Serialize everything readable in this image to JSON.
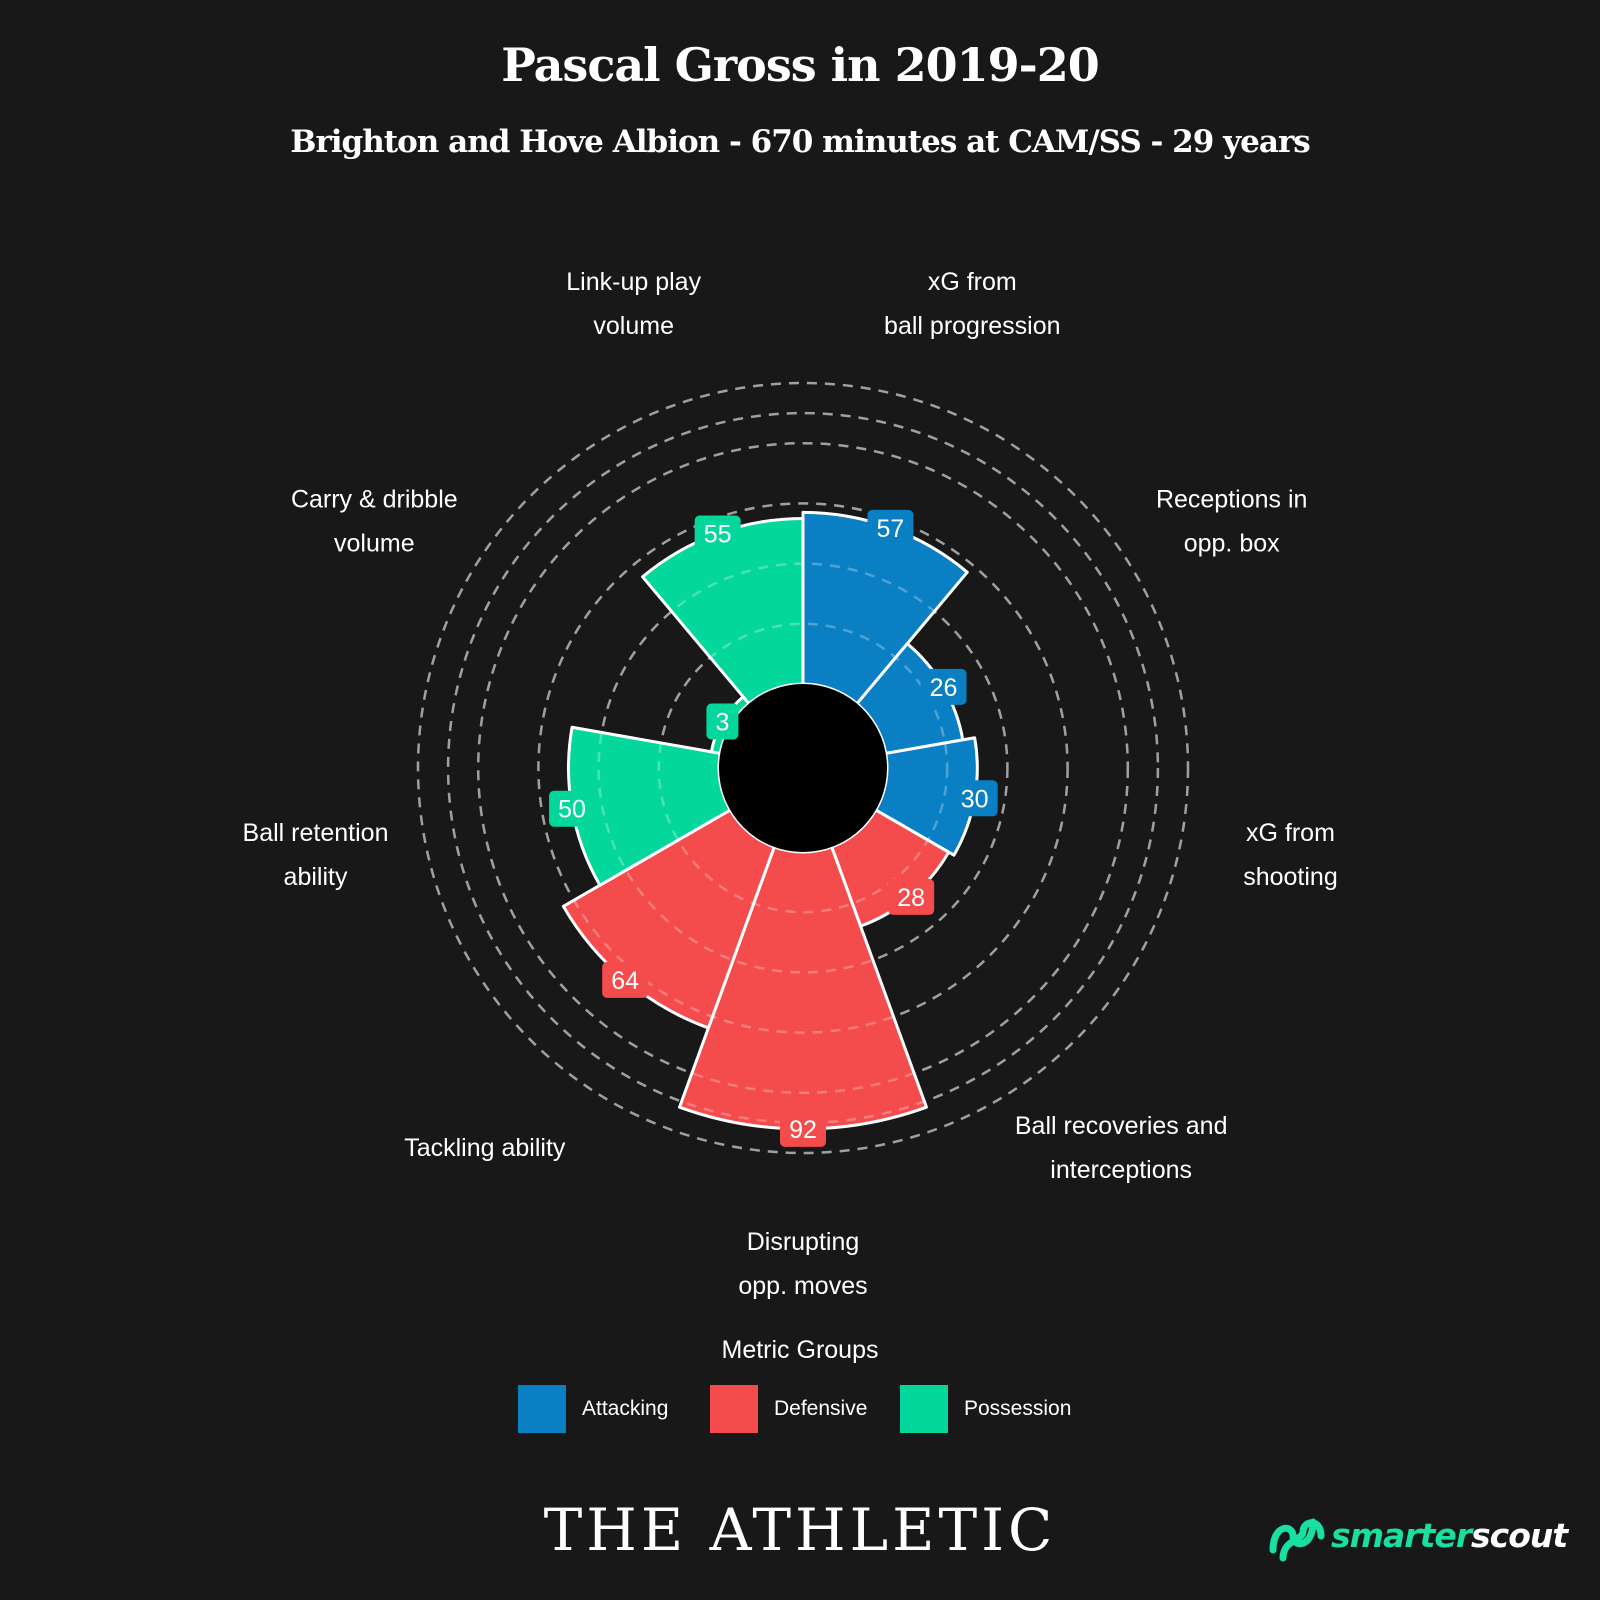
{
  "title": "Pascal Gross in 2019-20",
  "subtitle": "Brighton and Hove Albion - 670 minutes at CAM/SS - 29 years",
  "chart_data": {
    "type": "polar_bar",
    "scale_max": 100,
    "ring_values": [
      20,
      40,
      60,
      80,
      90,
      100
    ],
    "categories": [
      {
        "label": "xG from ball progression",
        "lines": [
          "xG from",
          "ball progression"
        ],
        "value": 57,
        "group": "Attacking"
      },
      {
        "label": "Receptions in opp. box",
        "lines": [
          "Receptions in",
          "opp. box"
        ],
        "value": 26,
        "group": "Attacking"
      },
      {
        "label": "xG from shooting",
        "lines": [
          "xG from",
          "shooting"
        ],
        "value": 30,
        "group": "Attacking"
      },
      {
        "label": "Ball recoveries and interceptions",
        "lines": [
          "Ball recoveries and",
          "interceptions"
        ],
        "value": 28,
        "group": "Defensive"
      },
      {
        "label": "Disrupting opp. moves",
        "lines": [
          "Disrupting",
          "opp. moves"
        ],
        "value": 92,
        "group": "Defensive"
      },
      {
        "label": "Tackling ability",
        "lines": [
          "Tackling ability"
        ],
        "value": 64,
        "group": "Defensive"
      },
      {
        "label": "Ball retention ability",
        "lines": [
          "Ball retention",
          "ability"
        ],
        "value": 50,
        "group": "Possession"
      },
      {
        "label": "Carry & dribble volume",
        "lines": [
          "Carry & dribble",
          "volume"
        ],
        "value": 3,
        "group": "Possession"
      },
      {
        "label": "Link-up play volume",
        "lines": [
          "Link-up play",
          "volume"
        ],
        "value": 55,
        "group": "Possession"
      }
    ],
    "legend": {
      "title": "Metric Groups",
      "placement": "bottom-center",
      "items": [
        {
          "name": "Attacking",
          "color": "#0a7fc4"
        },
        {
          "name": "Defensive",
          "color": "#f44b4d"
        },
        {
          "name": "Possession",
          "color": "#04d79b"
        }
      ]
    }
  },
  "footer": {
    "brand": "THE ATHLETIC",
    "partner_prefix": "smarter",
    "partner_suffix": "scout",
    "partner_icon": "smarterscout-logo-icon",
    "partner_color": "#19dfa0"
  }
}
